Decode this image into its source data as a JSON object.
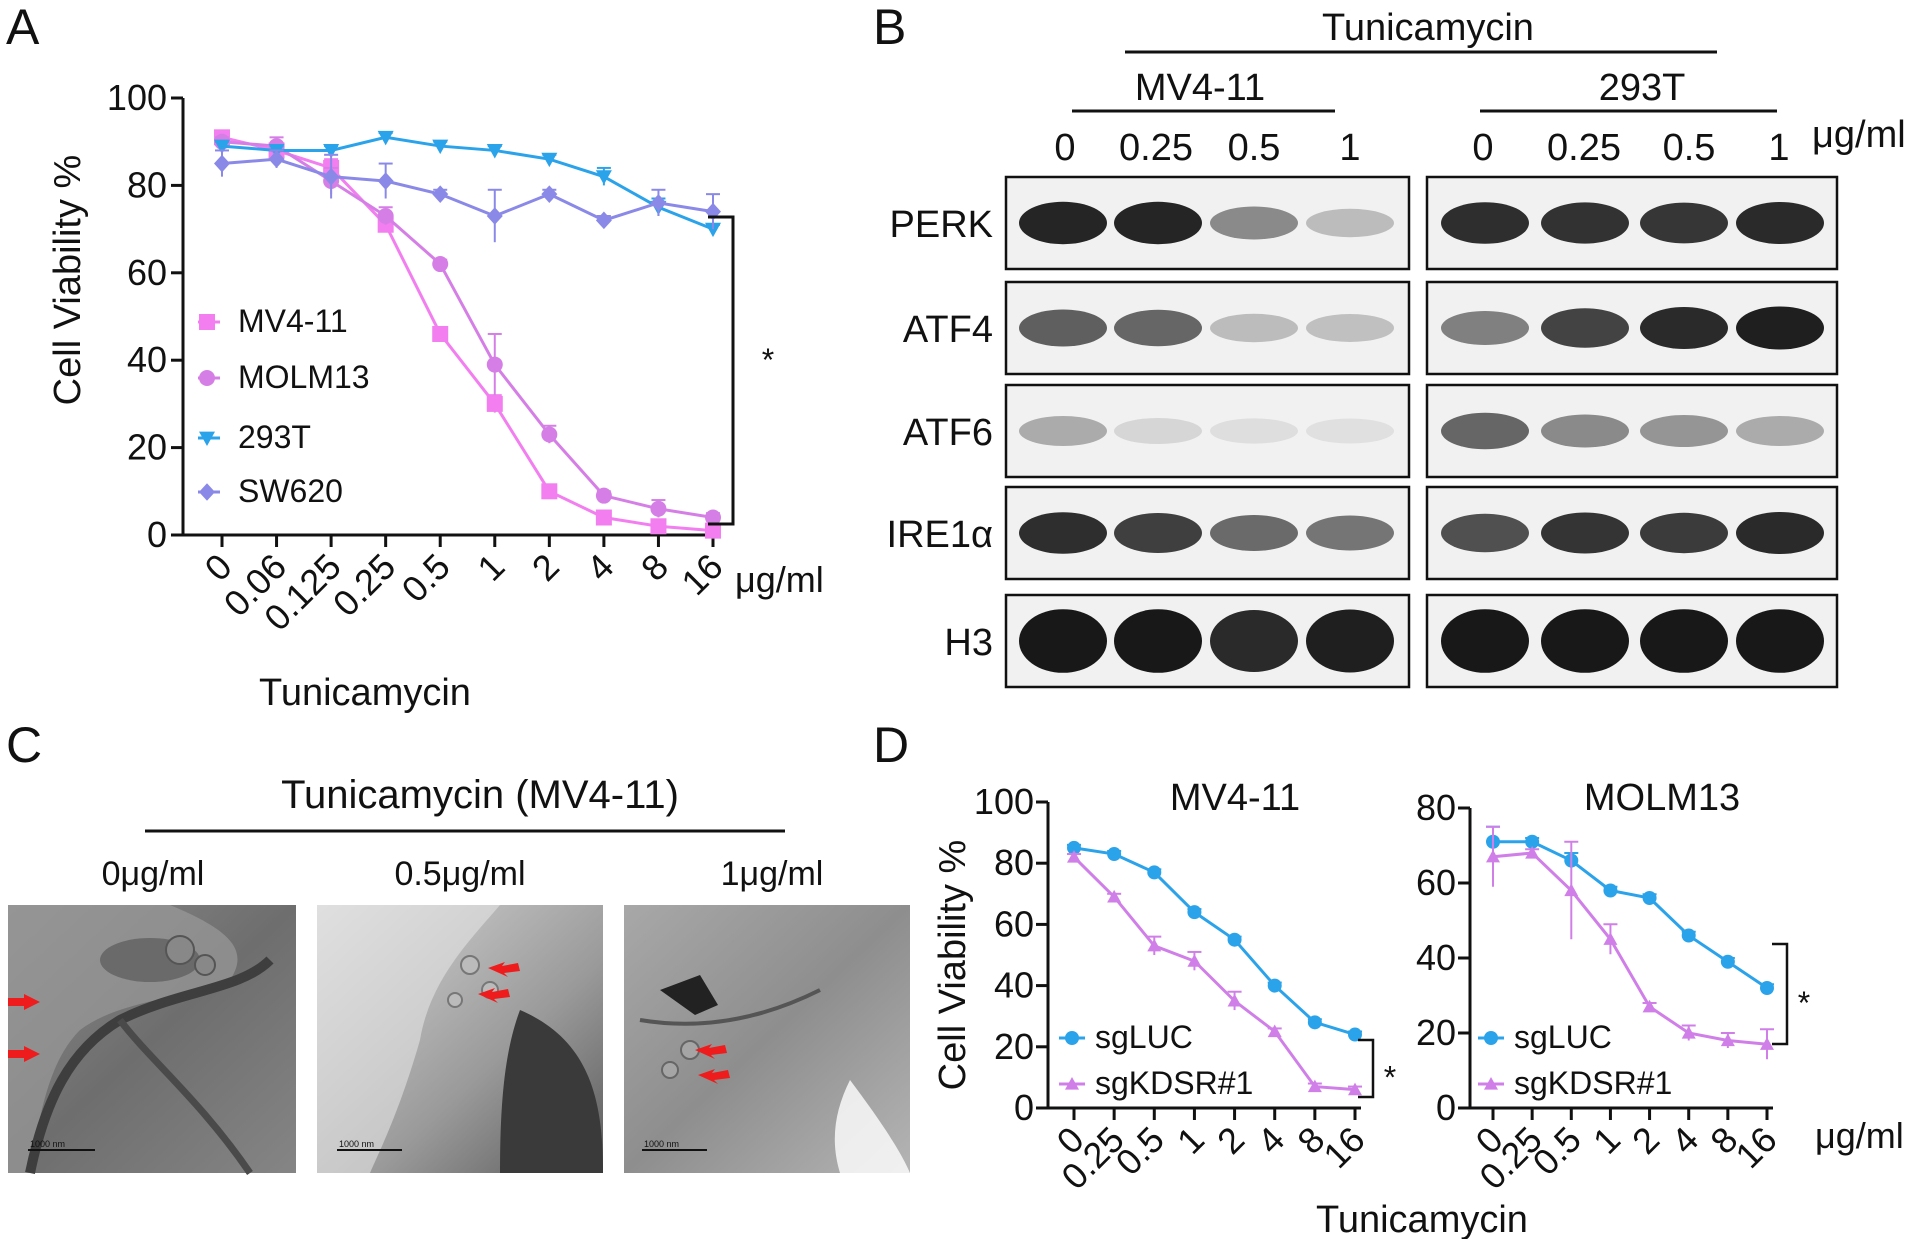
{
  "panels": {
    "A": {
      "letter": "A",
      "chart_data": {
        "type": "line",
        "ylabel": "Cell Viability %",
        "xlabel": "Tunicamycin",
        "unit": "μg/ml",
        "categories": [
          "0",
          "0.06",
          "0.125",
          "0.25",
          "0.5",
          "1",
          "2",
          "4",
          "8",
          "16"
        ],
        "ylim": [
          0,
          100
        ],
        "yticks": [
          "0",
          "20",
          "40",
          "60",
          "80",
          "100"
        ],
        "significance": "*",
        "series": [
          {
            "name": "MV4-11",
            "marker": "square",
            "color": "#f27ef0",
            "values": [
              91,
              88,
              84,
              71,
              46,
              30,
              10,
              4,
              2,
              1
            ],
            "errors": [
              1,
              1,
              2,
              1,
              1,
              2,
              1,
              1,
              1,
              1
            ]
          },
          {
            "name": "MOLM13",
            "marker": "circle",
            "color": "#d57fe6",
            "values": [
              90,
              89,
              81,
              73,
              62,
              39,
              23,
              9,
              6,
              4
            ],
            "errors": [
              1,
              2,
              3,
              2,
              1,
              7,
              2,
              1,
              2,
              1
            ]
          },
          {
            "name": "293T",
            "marker": "triangle-down",
            "color": "#2ba3ea",
            "values": [
              89,
              88,
              88,
              91,
              89,
              88,
              86,
              82,
              75,
              70
            ],
            "errors": [
              1,
              1,
              1,
              1,
              1,
              1,
              1,
              2,
              2,
              1
            ]
          },
          {
            "name": "SW620",
            "marker": "diamond",
            "color": "#8a89e8",
            "values": [
              85,
              86,
              82,
              81,
              78,
              73,
              78,
              72,
              76,
              74
            ],
            "errors": [
              3,
              2,
              5,
              4,
              1,
              6,
              1,
              1,
              3,
              4
            ]
          }
        ]
      }
    },
    "B": {
      "letter": "B",
      "treatment": "Tunicamycin",
      "groups": [
        {
          "name": "MV4-11",
          "doses": [
            "0",
            "0.25",
            "0.5",
            "1"
          ]
        },
        {
          "name": "293T",
          "doses": [
            "0",
            "0.25",
            "0.5",
            "1"
          ]
        }
      ],
      "unit": "μg/ml",
      "proteins": [
        "PERK",
        "ATF4",
        "ATF6",
        "IRE1α",
        "H3"
      ],
      "band_intensity": [
        [
          [
            0.92,
            0.92,
            0.45,
            0.22
          ],
          [
            0.88,
            0.86,
            0.84,
            0.9
          ]
        ],
        [
          [
            0.65,
            0.62,
            0.22,
            0.2
          ],
          [
            0.5,
            0.78,
            0.9,
            0.95
          ]
        ],
        [
          [
            0.3,
            0.1,
            0.06,
            0.05
          ],
          [
            0.62,
            0.45,
            0.4,
            0.3
          ]
        ],
        [
          [
            0.88,
            0.8,
            0.6,
            0.55
          ],
          [
            0.72,
            0.85,
            0.82,
            0.9
          ]
        ],
        [
          [
            0.98,
            0.98,
            0.9,
            0.95
          ],
          [
            0.98,
            0.98,
            0.98,
            0.98
          ]
        ]
      ]
    },
    "C": {
      "letter": "C",
      "title": "Tunicamycin (MV4-11)",
      "images": [
        {
          "label": "0μg/ml",
          "scalebar": "1000 nm"
        },
        {
          "label": "0.5μg/ml",
          "scalebar": "1000 nm"
        },
        {
          "label": "1μg/ml",
          "scalebar": "1000 nm"
        }
      ]
    },
    "D": {
      "letter": "D",
      "ylabel": "Cell Viability %",
      "xlabel": "Tunicamycin",
      "unit": "μg/ml",
      "chart_data": [
        {
          "type": "line",
          "title": "MV4-11",
          "categories": [
            "0",
            "0.25",
            "0.5",
            "1",
            "2",
            "4",
            "8",
            "16"
          ],
          "ylim": [
            0,
            100
          ],
          "yticks": [
            "0",
            "20",
            "40",
            "60",
            "80",
            "100"
          ],
          "significance": "*",
          "series": [
            {
              "name": "sgLUC",
              "marker": "circle",
              "color": "#2ba3ea",
              "values": [
                85,
                83,
                77,
                64,
                55,
                40,
                28,
                24
              ],
              "errors": [
                1,
                1,
                1,
                1,
                1,
                1,
                1,
                1
              ]
            },
            {
              "name": "sgKDSR#1",
              "marker": "triangle",
              "color": "#d07fe8",
              "values": [
                82,
                69,
                53,
                48,
                35,
                25,
                7,
                6
              ],
              "errors": [
                1,
                1,
                3,
                3,
                3,
                1,
                1,
                1
              ]
            }
          ]
        },
        {
          "type": "line",
          "title": "MOLM13",
          "categories": [
            "0",
            "0.25",
            "0.5",
            "1",
            "2",
            "4",
            "8",
            "16"
          ],
          "ylim": [
            0,
            80
          ],
          "yticks": [
            "0",
            "20",
            "40",
            "60",
            "80"
          ],
          "significance": "*",
          "series": [
            {
              "name": "sgLUC",
              "marker": "circle",
              "color": "#2ba3ea",
              "values": [
                71,
                71,
                66,
                58,
                56,
                46,
                39,
                32
              ],
              "errors": [
                4,
                1,
                2,
                1,
                1,
                1,
                1,
                1
              ]
            },
            {
              "name": "sgKDSR#1",
              "marker": "triangle",
              "color": "#d07fe8",
              "values": [
                67,
                68,
                58,
                45,
                27,
                20,
                18,
                17
              ],
              "errors": [
                8,
                1,
                13,
                4,
                1,
                2,
                2,
                4
              ]
            }
          ]
        }
      ]
    }
  }
}
